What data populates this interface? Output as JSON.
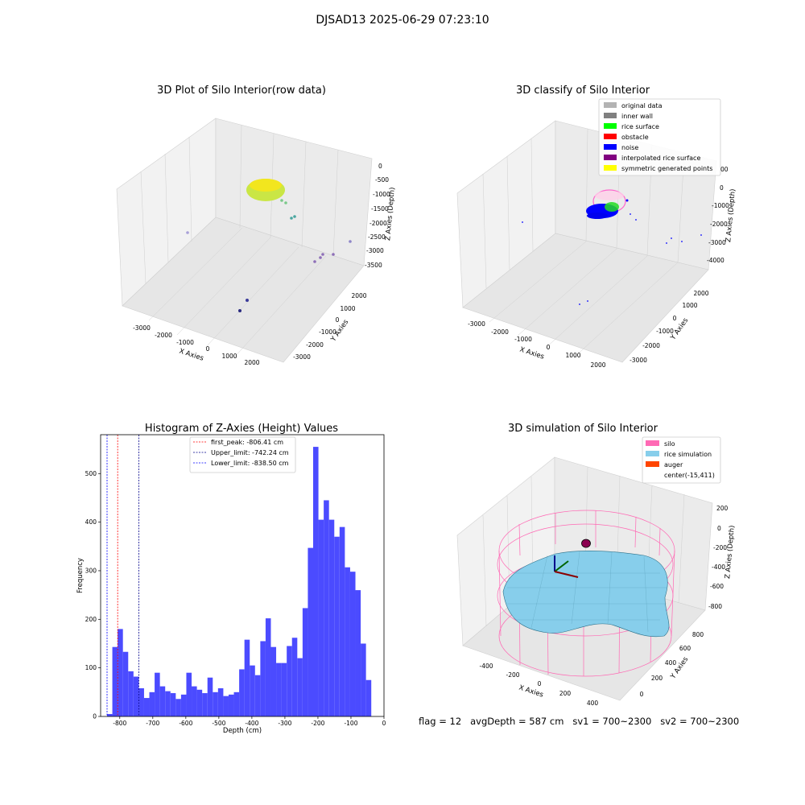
{
  "figure_title": "DJSAD13 2025-06-29 07:23:10",
  "footer": "flag = 12   avgDepth = 587 cm   sv1 = 700~2300   sv2 = 700~2300",
  "chart_data": [
    {
      "id": "raw",
      "type": "scatter",
      "title": "3D Plot of Silo Interior(row data)",
      "xlabel": "X Axies",
      "ylabel": "Y Axies",
      "zlabel": "Z Axies (Depth)",
      "x_ticks": [
        "-3000",
        "-2000",
        "-1000",
        "0",
        "1000",
        "2000"
      ],
      "y_ticks": [
        "-3000",
        "-2000",
        "-1000",
        "0",
        "1000",
        "2000"
      ],
      "z_ticks": [
        "0",
        "-500",
        "-1000",
        "-1500",
        "-2000",
        "-2500",
        "-3000",
        "-3500"
      ]
    },
    {
      "id": "classify",
      "type": "scatter",
      "title": "3D classify of Silo Interior",
      "xlabel": "X Axies",
      "ylabel": "Y Axies",
      "zlabel": "Z Axies (Depth)",
      "x_ticks": [
        "-3000",
        "-2000",
        "-1000",
        "0",
        "1000",
        "2000"
      ],
      "y_ticks": [
        "-3000",
        "-2000",
        "-1000",
        "0",
        "1000",
        "2000"
      ],
      "z_ticks": [
        "0",
        "-1000",
        "-2000",
        "-3000",
        "-4000"
      ],
      "legend_top_value": "00",
      "legend": [
        {
          "label": "original data",
          "color": "#b3b3b3"
        },
        {
          "label": "inner wall",
          "color": "#808080"
        },
        {
          "label": "rice surface",
          "color": "#00ff00"
        },
        {
          "label": "obstacle",
          "color": "#ff0000"
        },
        {
          "label": "noise",
          "color": "#0000ff"
        },
        {
          "label": "interpolated rice surface",
          "color": "#800080"
        },
        {
          "label": "symmetric generated points",
          "color": "#ffff00"
        }
      ]
    },
    {
      "id": "hist",
      "type": "bar",
      "title": "Histogram of Z-Axies (Height) Values",
      "xlabel": "Depth (cm)",
      "ylabel": "Frequency",
      "xlim": [
        -858,
        0
      ],
      "ylim": [
        0,
        580
      ],
      "x_ticks": [
        -800,
        -700,
        -600,
        -500,
        -400,
        -300,
        -200,
        -100,
        0
      ],
      "y_ticks": [
        0,
        100,
        200,
        300,
        400,
        500
      ],
      "bin_width": 16,
      "bin_start": -838.5,
      "values": [
        5,
        143,
        180,
        133,
        93,
        82,
        58,
        38,
        50,
        90,
        62,
        52,
        48,
        36,
        45,
        90,
        62,
        55,
        48,
        80,
        50,
        58,
        42,
        45,
        50,
        97,
        158,
        105,
        85,
        155,
        202,
        143,
        110,
        110,
        145,
        162,
        120,
        223,
        347,
        555,
        405,
        445,
        405,
        370,
        390,
        307,
        298,
        260,
        150,
        75
      ],
      "bar_color": "#4b4bff",
      "vlines": [
        {
          "label": "first_peak: -806.41 cm",
          "value": -806.41,
          "color": "#ff0000"
        },
        {
          "label": "Upper_limit: -742.24 cm",
          "value": -742.24,
          "color": "#00008b"
        },
        {
          "label": "Lower_limit: -838.50 cm",
          "value": -838.5,
          "color": "#0000ff"
        }
      ]
    },
    {
      "id": "simulation",
      "type": "other",
      "title": "3D simulation of Silo Interior",
      "xlabel": "X Axies",
      "ylabel": "Y Axies",
      "zlabel": "Z Axies (Depth)",
      "x_ticks": [
        "-400",
        "-200",
        "0",
        "200",
        "400"
      ],
      "y_ticks": [
        "0",
        "200",
        "400",
        "600",
        "800"
      ],
      "z_ticks": [
        "200",
        "0",
        "-200",
        "-400",
        "-600",
        "-800"
      ],
      "legend": [
        {
          "label": "silo",
          "color": "#ff69b4"
        },
        {
          "label": "rice simulation",
          "color": "#87ceeb"
        },
        {
          "label": "auger",
          "color": "#ff4500"
        },
        {
          "label": "center(-15,411)",
          "color": ""
        }
      ]
    }
  ]
}
